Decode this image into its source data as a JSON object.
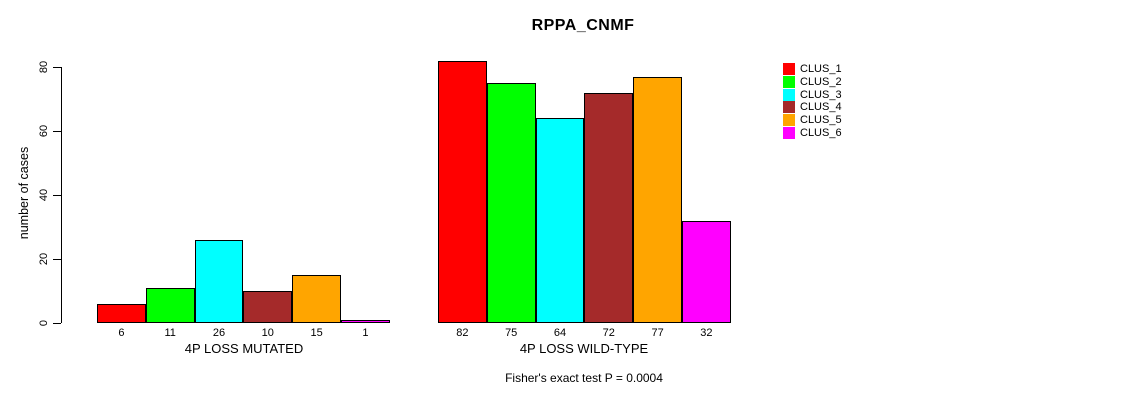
{
  "chart": {
    "title": "RPPA_CNMF",
    "ylabel": "number of cases",
    "footnote": "Fisher's exact test P = 0.0004"
  },
  "chart_data": {
    "type": "bar",
    "title": "RPPA_CNMF",
    "xlabel": "",
    "ylabel": "number of cases",
    "ylim": [
      0,
      80
    ],
    "yticks": [
      0,
      20,
      40,
      60,
      80
    ],
    "grid": false,
    "legend_position": "right",
    "annotation": "Fisher's exact test P = 0.0004",
    "groups": [
      {
        "label": "4P LOSS MUTATED",
        "values": [
          6,
          11,
          26,
          10,
          15,
          1
        ]
      },
      {
        "label": "4P LOSS WILD-TYPE",
        "values": [
          82,
          75,
          64,
          72,
          77,
          32
        ]
      }
    ],
    "series": [
      {
        "name": "CLUS_1",
        "color": "#FF0000",
        "values": [
          6,
          82
        ]
      },
      {
        "name": "CLUS_2",
        "color": "#00FF00",
        "values": [
          11,
          75
        ]
      },
      {
        "name": "CLUS_3",
        "color": "#00FFFF",
        "values": [
          26,
          64
        ]
      },
      {
        "name": "CLUS_4",
        "color": "#A52A2A",
        "values": [
          10,
          72
        ]
      },
      {
        "name": "CLUS_5",
        "color": "#FFA500",
        "values": [
          15,
          77
        ]
      },
      {
        "name": "CLUS_6",
        "color": "#FF00FF",
        "values": [
          1,
          32
        ]
      }
    ]
  }
}
